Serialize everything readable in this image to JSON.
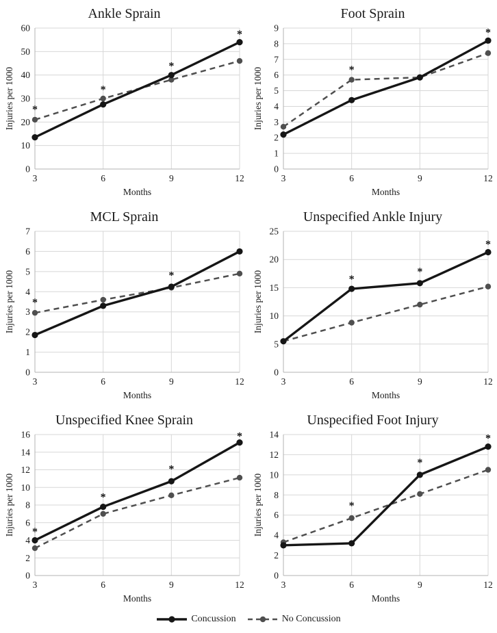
{
  "figure": {
    "xlabel": "Months",
    "ylabel": "Injuries per 1000"
  },
  "colors": {
    "concussion": "#161616",
    "no_concussion": "#4f4f4f",
    "grid": "#d7d7d7",
    "axis": "#b3b3b3",
    "text": "#1a1a1a"
  },
  "legend": {
    "items": [
      {
        "label": "Concussion",
        "series_key": "concussion",
        "style": "solid"
      },
      {
        "label": "No Concussion",
        "series_key": "no_concussion",
        "style": "dashed"
      }
    ]
  },
  "chart_data": [
    {
      "type": "line",
      "title": "Ankle Sprain",
      "xlabel": "Months",
      "ylabel": "Injuries per 1000",
      "x": [
        3,
        6,
        9,
        12
      ],
      "ylim": [
        0,
        60
      ],
      "ytick_step": 10,
      "grid": true,
      "series": [
        {
          "name": "Concussion",
          "key": "concussion",
          "style": "solid",
          "values": [
            13.5,
            27.5,
            40,
            54
          ]
        },
        {
          "name": "No Concussion",
          "key": "no_concussion",
          "style": "dashed",
          "values": [
            21,
            30,
            38,
            46
          ]
        }
      ],
      "significance_asterisks": [
        {
          "x": 3,
          "y": 26.5
        },
        {
          "x": 6,
          "y": 35
        },
        {
          "x": 9,
          "y": 45
        },
        {
          "x": 12,
          "y": 58.5
        }
      ]
    },
    {
      "type": "line",
      "title": "Foot Sprain",
      "xlabel": "Months",
      "ylabel": "Injuries per 1000",
      "x": [
        3,
        6,
        9,
        12
      ],
      "ylim": [
        0,
        9
      ],
      "ytick_step": 1,
      "grid": true,
      "series": [
        {
          "name": "Concussion",
          "key": "concussion",
          "style": "solid",
          "values": [
            2.2,
            4.4,
            5.85,
            8.2
          ]
        },
        {
          "name": "No Concussion",
          "key": "no_concussion",
          "style": "dashed",
          "values": [
            2.7,
            5.7,
            5.85,
            7.4
          ]
        }
      ],
      "significance_asterisks": [
        {
          "x": 6,
          "y": 6.5
        },
        {
          "x": 12,
          "y": 8.9
        }
      ]
    },
    {
      "type": "line",
      "title": "MCL Sprain",
      "xlabel": "Months",
      "ylabel": "Injuries per 1000",
      "x": [
        3,
        6,
        9,
        12
      ],
      "ylim": [
        0,
        7
      ],
      "ytick_step": 1,
      "grid": true,
      "series": [
        {
          "name": "Concussion",
          "key": "concussion",
          "style": "solid",
          "values": [
            1.85,
            3.3,
            4.25,
            6.0
          ]
        },
        {
          "name": "No Concussion",
          "key": "no_concussion",
          "style": "dashed",
          "values": [
            2.95,
            3.6,
            4.2,
            4.9
          ]
        }
      ],
      "significance_asterisks": [
        {
          "x": 3,
          "y": 3.6
        },
        {
          "x": 9,
          "y": 4.95
        }
      ]
    },
    {
      "type": "line",
      "title": "Unspecified Ankle Injury",
      "xlabel": "Months",
      "ylabel": "Injuries per 1000",
      "x": [
        3,
        6,
        9,
        12
      ],
      "ylim": [
        0,
        25
      ],
      "ytick_step": 5,
      "grid": true,
      "series": [
        {
          "name": "Concussion",
          "key": "concussion",
          "style": "solid",
          "values": [
            5.5,
            14.8,
            15.8,
            21.3
          ]
        },
        {
          "name": "No Concussion",
          "key": "no_concussion",
          "style": "dashed",
          "values": [
            5.5,
            8.8,
            12.0,
            15.2
          ]
        }
      ],
      "significance_asterisks": [
        {
          "x": 6,
          "y": 17
        },
        {
          "x": 9,
          "y": 18.3
        },
        {
          "x": 12,
          "y": 23.2
        }
      ]
    },
    {
      "type": "line",
      "title": "Unspecified Knee Sprain",
      "xlabel": "Months",
      "ylabel": "Injuries per 1000",
      "x": [
        3,
        6,
        9,
        12
      ],
      "ylim": [
        0,
        16
      ],
      "ytick_step": 2,
      "grid": true,
      "series": [
        {
          "name": "Concussion",
          "key": "concussion",
          "style": "solid",
          "values": [
            4.0,
            7.8,
            10.7,
            15.1
          ]
        },
        {
          "name": "No Concussion",
          "key": "no_concussion",
          "style": "dashed",
          "values": [
            3.1,
            7.0,
            9.1,
            11.1
          ]
        }
      ],
      "significance_asterisks": [
        {
          "x": 3,
          "y": 5.3
        },
        {
          "x": 6,
          "y": 9.2
        },
        {
          "x": 9,
          "y": 12.4
        },
        {
          "x": 12,
          "y": 16.1
        }
      ]
    },
    {
      "type": "line",
      "title": "Unspecified Foot Injury",
      "xlabel": "Months",
      "ylabel": "Injuries per 1000",
      "x": [
        3,
        6,
        9,
        12
      ],
      "ylim": [
        0,
        14
      ],
      "ytick_step": 2,
      "grid": true,
      "series": [
        {
          "name": "Concussion",
          "key": "concussion",
          "style": "solid",
          "values": [
            3.0,
            3.2,
            10.0,
            12.8
          ]
        },
        {
          "name": "No Concussion",
          "key": "no_concussion",
          "style": "dashed",
          "values": [
            3.3,
            5.7,
            8.1,
            10.5
          ]
        }
      ],
      "significance_asterisks": [
        {
          "x": 6,
          "y": 7.2
        },
        {
          "x": 9,
          "y": 11.5
        },
        {
          "x": 12,
          "y": 13.9
        }
      ]
    }
  ]
}
